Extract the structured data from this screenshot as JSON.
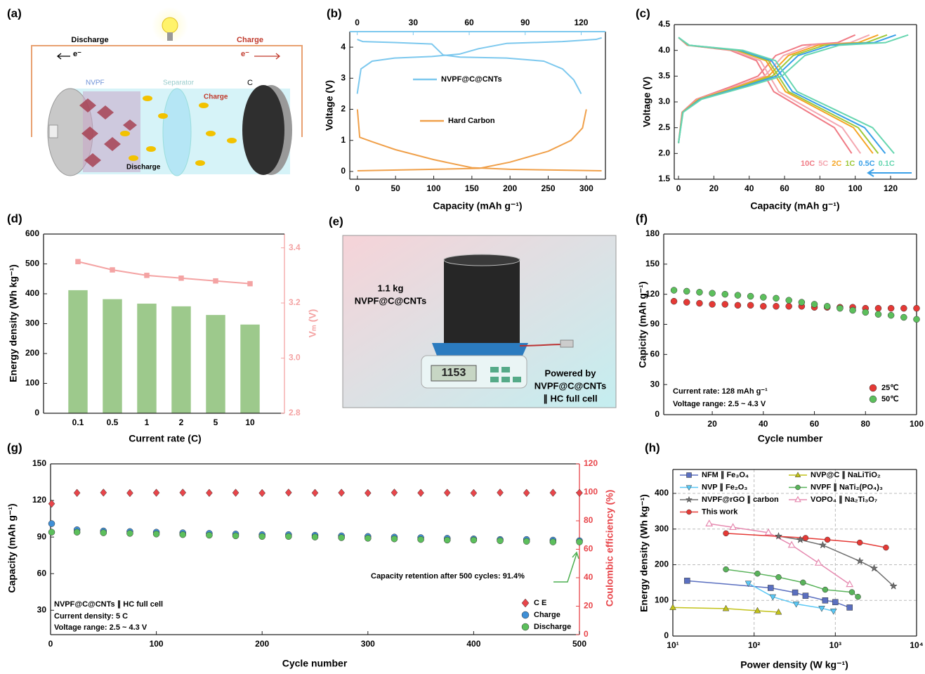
{
  "panel_a": {
    "label": "(a)",
    "discharge": "Discharge",
    "charge": "Charge",
    "electron_left": "e⁻",
    "electron_right": "e⁻",
    "cathode": "NVPF",
    "separator": "Separator",
    "charge_inner": "Charge",
    "anode": "C",
    "discharge_inner": "Discharge"
  },
  "panel_e": {
    "label": "(e)",
    "mass": "1.1 kg",
    "material": "NVPF@C@CNTs",
    "display": "1153",
    "caption": [
      "Powered by",
      "NVPF@C@CNTs",
      "∥ HC full cell"
    ]
  },
  "chart_data": [
    {
      "label": "(b)",
      "type": "line",
      "xlabel": "Capacity (mAh g⁻¹)",
      "ylabel": "Voltage (V)",
      "xlim": [
        -10,
        325
      ],
      "xticks": [
        0,
        50,
        100,
        150,
        200,
        250,
        300
      ],
      "x2lim": [
        -4,
        133
      ],
      "x2ticks": [
        0,
        30,
        60,
        90,
        120
      ],
      "ylim": [
        -0.25,
        4.5
      ],
      "yticks": [
        0,
        1,
        2,
        3,
        4
      ],
      "series": [
        {
          "name": "NVPF@C@CNTs",
          "color": "#7cc8ee",
          "axis": "x2",
          "x": [
            0,
            2,
            8,
            20,
            40,
            55,
            65,
            80,
            110,
            128,
            131,
            null,
            0,
            3,
            20,
            40,
            46,
            55,
            80,
            100,
            110,
            116,
            120
          ],
          "values": [
            2.5,
            3.3,
            3.55,
            3.65,
            3.7,
            3.78,
            3.95,
            4.12,
            4.18,
            4.25,
            4.3,
            null,
            4.25,
            4.18,
            4.15,
            4.1,
            3.75,
            3.68,
            3.65,
            3.55,
            3.3,
            2.95,
            2.5
          ]
        },
        {
          "name": "Hard Carbon",
          "color": "#f0a04a",
          "x": [
            0,
            3,
            20,
            50,
            100,
            150,
            200,
            320,
            null,
            0,
            100,
            160,
            200,
            250,
            280,
            295,
            300
          ],
          "values": [
            2.0,
            1.1,
            0.95,
            0.7,
            0.38,
            0.12,
            0.07,
            0.02,
            null,
            0.02,
            0.07,
            0.1,
            0.3,
            0.65,
            1.0,
            1.4,
            2.0
          ]
        }
      ]
    },
    {
      "label": "(c)",
      "type": "line",
      "xlabel": "Capacity (mAh g⁻¹)",
      "ylabel": "Voltage (V)",
      "xlim": [
        -2.4,
        134.7
      ],
      "xticks": [
        0,
        20,
        40,
        60,
        80,
        100,
        120
      ],
      "ylim": [
        1.5,
        4.5
      ],
      "yticks": [
        1.5,
        {
          "value": 2,
          "label": "2.0"
        },
        2.5,
        {
          "value": 3,
          "label": "3.0"
        },
        3.5,
        {
          "value": 4,
          "label": "4.0"
        },
        4.5
      ],
      "series": [
        {
          "name": "10C",
          "color": "#f07b85",
          "x": [
            0,
            2,
            10,
            30,
            45,
            55,
            70,
            90,
            100,
            null,
            0,
            4.9,
            29.4,
            44.1,
            53.9,
            68.6,
            88.2,
            98
          ],
          "values": [
            2.2,
            2.8,
            3.05,
            3.3,
            3.5,
            3.9,
            4.1,
            4.15,
            4.3,
            null,
            4.25,
            4.1,
            4.0,
            3.8,
            3.2,
            2.9,
            2.5,
            2.0
          ]
        },
        {
          "name": "5C",
          "color": "#f4a7b0",
          "x": [
            0,
            2.2,
            10.8,
            32.4,
            48.6,
            59.4,
            75.6,
            97.2,
            108,
            null,
            0,
            5.2,
            30.9,
            46.4,
            56.7,
            72.1,
            92.7,
            103
          ],
          "values": [
            2.2,
            2.8,
            3.05,
            3.3,
            3.5,
            3.9,
            4.1,
            4.15,
            4.3,
            null,
            4.25,
            4.1,
            4.0,
            3.8,
            3.2,
            2.9,
            2.5,
            2.0
          ]
        },
        {
          "name": "2C",
          "color": "#f5a524",
          "x": [
            0,
            2.3,
            11.3,
            33.9,
            50.9,
            62.2,
            79.1,
            101.7,
            113,
            null,
            0,
            5.5,
            33,
            49.5,
            60.5,
            77,
            99,
            110
          ],
          "values": [
            2.2,
            2.8,
            3.05,
            3.3,
            3.5,
            3.9,
            4.1,
            4.15,
            4.3,
            null,
            4.25,
            4.1,
            4.0,
            3.8,
            3.2,
            2.9,
            2.5,
            2.0
          ]
        },
        {
          "name": "1C",
          "color": "#9dc93a",
          "x": [
            0,
            2.4,
            11.8,
            35.4,
            53.1,
            64.9,
            82.6,
            106.2,
            118,
            null,
            0,
            5.7,
            33.9,
            50.9,
            62.2,
            79.1,
            101.7,
            113
          ],
          "values": [
            2.2,
            2.8,
            3.05,
            3.3,
            3.5,
            3.9,
            4.1,
            4.15,
            4.3,
            null,
            4.25,
            4.1,
            4.0,
            3.8,
            3.2,
            2.9,
            2.5,
            2.0
          ]
        },
        {
          "name": "0.5C",
          "color": "#3aa0e8",
          "x": [
            0,
            2.5,
            12.3,
            36.9,
            55.4,
            67.7,
            86.1,
            110.7,
            123,
            null,
            0,
            5.9,
            35.1,
            52.7,
            64.4,
            81.9,
            105.3,
            117
          ],
          "values": [
            2.2,
            2.8,
            3.05,
            3.3,
            3.5,
            3.9,
            4.1,
            4.15,
            4.3,
            null,
            4.25,
            4.1,
            4.0,
            3.8,
            3.2,
            2.9,
            2.5,
            2.0
          ]
        },
        {
          "name": "0.1C",
          "color": "#67d6b0",
          "x": [
            0,
            2.6,
            13,
            39,
            58.5,
            71.5,
            91,
            117,
            130,
            null,
            0,
            6.1,
            36.6,
            54.9,
            67.1,
            85.4,
            109.8,
            122
          ],
          "values": [
            2.2,
            2.8,
            3.05,
            3.3,
            3.5,
            3.9,
            4.1,
            4.15,
            4.3,
            null,
            4.25,
            4.1,
            4.0,
            3.8,
            3.2,
            2.9,
            2.5,
            2.0
          ]
        }
      ]
    },
    {
      "label": "(d)",
      "type": "bar",
      "xlabel": "Current rate (C)",
      "ylabel": "Energy density (Wh kg⁻¹)",
      "y2label": "Vₘ (V)",
      "categories": [
        "0.1",
        "0.5",
        "1",
        "2",
        "5",
        "10"
      ],
      "ylim": [
        0,
        600
      ],
      "yticks": [
        0,
        100,
        200,
        300,
        400,
        500,
        600
      ],
      "y2lim": [
        2.8,
        3.45
      ],
      "y2ticks": [
        2.8,
        {
          "value": 3,
          "label": "3.0"
        },
        3.2,
        3.4
      ],
      "series": [
        {
          "color": "#8cbf78",
          "values": [
            412,
            382,
            367,
            358,
            329,
            297
          ]
        },
        {
          "color": "#f4a3a3",
          "axis": "y2",
          "marker": "square",
          "values": [
            3.35,
            3.32,
            3.3,
            3.29,
            3.28,
            3.27
          ]
        }
      ]
    },
    {
      "label": "(f)",
      "type": "scatter",
      "xlabel": "Cycle number",
      "ylabel": "Capicity (mAh g⁻¹)",
      "annotations": [
        "Current rate: 128 mAh g⁻¹",
        "Voltage range: 2.5 ~ 4.3 V"
      ],
      "xlim": [
        1,
        100
      ],
      "xticks": [
        20,
        40,
        60,
        80,
        100
      ],
      "ylim": [
        0,
        180
      ],
      "yticks": [
        0,
        30,
        60,
        90,
        120,
        150,
        180
      ],
      "x": [
        5,
        10,
        15,
        20,
        25,
        30,
        35,
        40,
        45,
        50,
        55,
        60,
        65,
        70,
        75,
        80,
        85,
        90,
        95,
        100
      ],
      "series": [
        {
          "name": "25℃",
          "color": "#e53935",
          "marker": "circle",
          "values": [
            113,
            112,
            111,
            110,
            110,
            109,
            109,
            108,
            108,
            108,
            108,
            107,
            107,
            107,
            107,
            106,
            106,
            106,
            106,
            106
          ]
        },
        {
          "name": "50℃",
          "color": "#5cbf5c",
          "marker": "circle",
          "values": [
            124,
            123,
            122,
            121,
            120,
            119,
            118,
            117,
            116,
            114,
            112,
            110,
            108,
            106,
            104,
            102,
            100,
            99,
            97,
            95
          ]
        }
      ]
    },
    {
      "label": "(g)",
      "type": "scatter",
      "xlabel": "Cycle number",
      "ylabel": "Capacity (mAh g⁻¹)",
      "y2label": "Coulombic efficiency (%)",
      "annotations": [
        "Capacity retention after 500 cycles: 91.4%",
        "NVPF@C@CNTs ∥ HC full cell",
        "Current density: 5 C",
        "Voltage range: 2.5 ~ 4.3 V"
      ],
      "xlim": [
        0,
        500
      ],
      "xticks": [
        0,
        100,
        200,
        300,
        400,
        500
      ],
      "ylim": [
        10,
        150
      ],
      "yticks": [
        30,
        60,
        90,
        120,
        150
      ],
      "y2lim": [
        0,
        120
      ],
      "y2ticks": [
        0,
        20,
        40,
        60,
        80,
        100,
        120
      ],
      "x": [
        1,
        25,
        50,
        75,
        100,
        125,
        150,
        175,
        200,
        225,
        250,
        275,
        300,
        325,
        350,
        375,
        400,
        425,
        450,
        475,
        500
      ],
      "series": [
        {
          "name": "C E",
          "color": "#e8454a",
          "marker": "diamond",
          "axis": "y2",
          "values": [
            92,
            99.6,
            99.8,
            99.5,
            99.7,
            99.8,
            99.6,
            99.7,
            99.5,
            99.8,
            99.6,
            99.7,
            99.5,
            99.8,
            99.6,
            99.7,
            99.5,
            99.8,
            99.6,
            99.7,
            99.6
          ]
        },
        {
          "name": "Charge",
          "color": "#3f8fd6",
          "marker": "circle",
          "values": [
            101,
            96,
            95,
            94.5,
            94,
            93.5,
            93,
            92.5,
            92,
            92,
            91.5,
            91,
            90.5,
            90,
            89.5,
            89,
            88.5,
            88,
            88,
            87.5,
            87
          ]
        },
        {
          "name": "Discharge",
          "color": "#5cbf5c",
          "marker": "circle",
          "values": [
            94,
            94,
            93.5,
            93,
            92.5,
            92,
            91.5,
            91,
            90.5,
            90.5,
            90,
            89.5,
            89,
            88.5,
            88,
            87.5,
            87.5,
            87,
            86.5,
            86,
            86
          ]
        }
      ]
    },
    {
      "label": "(h)",
      "type": "line",
      "xlabel": "Power density (W kg⁻¹)",
      "ylabel": "Energy density (Wh kg⁻¹)",
      "xlog": true,
      "grid": true,
      "xlim": [
        10,
        10000
      ],
      "xticks": [
        {
          "value": 10,
          "label": "10¹"
        },
        {
          "value": 100,
          "label": "10²"
        },
        {
          "value": 1000,
          "label": "10³"
        },
        {
          "value": 10000,
          "label": "10⁴"
        }
      ],
      "ylim": [
        0,
        467
      ],
      "yticks": [
        0,
        100,
        200,
        300,
        400
      ],
      "series": [
        {
          "name": "NFM ∥ Fe₃O₄",
          "color": "#5a6fc0",
          "marker": "square",
          "x": [
            15,
            160,
            320,
            430,
            750,
            1000,
            1500
          ],
          "values": [
            155,
            135,
            122,
            113,
            100,
            95,
            80
          ]
        },
        {
          "name": "NVP@C ∥ NaLiTiO₂",
          "color": "#c2c21a",
          "marker": "triangle",
          "x": [
            10,
            45,
            110,
            200
          ],
          "values": [
            80,
            77,
            71,
            67
          ]
        },
        {
          "name": "NVP ∥ Fe₂O₃",
          "color": "#5bc8f5",
          "marker": "triangle-down",
          "x": [
            85,
            170,
            330,
            680,
            950
          ],
          "values": [
            148,
            110,
            90,
            78,
            70
          ]
        },
        {
          "name": "NVPF ∥ NaTi₂(PO₄)₃",
          "color": "#59b35a",
          "marker": "circle",
          "x": [
            45,
            110,
            200,
            400,
            750,
            1600,
            1900
          ],
          "values": [
            187,
            175,
            165,
            150,
            130,
            123,
            110
          ]
        },
        {
          "name": "NVPF@rGO ∥ carbon",
          "color": "#6e6e6e",
          "marker": "star",
          "x": [
            200,
            370,
            700,
            2000,
            3000,
            5200
          ],
          "values": [
            280,
            270,
            255,
            210,
            190,
            140
          ]
        },
        {
          "name": "VOPO₄ ∥ Na₂Ti₃O₇",
          "color": "#e68ab0",
          "marker": "triangle-open",
          "x": [
            28,
            55,
            150,
            290,
            620,
            1500
          ],
          "values": [
            315,
            305,
            290,
            255,
            205,
            145
          ]
        },
        {
          "name": "This work",
          "color": "#e53935",
          "marker": "circle",
          "x": [
            45,
            430,
            800,
            2000,
            4200
          ],
          "values": [
            288,
            275,
            270,
            262,
            248
          ]
        }
      ]
    }
  ]
}
